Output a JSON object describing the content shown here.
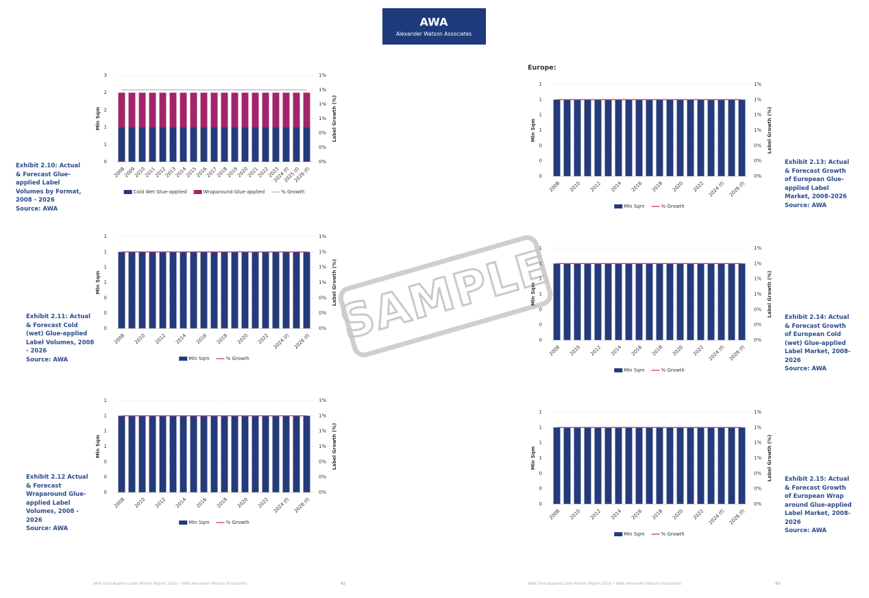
{
  "header": {
    "logo": "AWA",
    "subtitle": "Alexander Watson Associates"
  },
  "section": "Europe:",
  "watermark": "SAMPLE",
  "footer_left": {
    "text": "AWA Glue-Applied Label Market Report 2024 • AWA Alexander Watson Associates",
    "page": "42"
  },
  "footer_right": {
    "text": "AWA Glue-Applied Label Market Report 2024 • AWA Alexander Watson Associates",
    "page": "43"
  },
  "chart_data": [
    {
      "type": "bar",
      "stacked": true,
      "title": "Exhibit 2.10: Actual & Forecast Glue-applied Label Volumes by Format, 2008 - 2026",
      "source": "Source: AWA",
      "ylabel": "Mln Sqm",
      "y2label": "Label Growth (%)",
      "categories": [
        "2008",
        "2009",
        "2010",
        "2011",
        "2012",
        "2013",
        "2014",
        "2015",
        "2016",
        "2017",
        "2018",
        "2019",
        "2020",
        "2021",
        "2022",
        "2023",
        "2024 (f)",
        "2025 (f)",
        "2026 (f)"
      ],
      "series": [
        {
          "name": "Cold Wet Glue-applied",
          "color": "#253a7a",
          "values": [
            1.2,
            1.2,
            1.2,
            1.2,
            1.2,
            1.2,
            1.2,
            1.2,
            1.2,
            1.2,
            1.2,
            1.2,
            1.2,
            1.2,
            1.2,
            1.2,
            1.2,
            1.2,
            1.2
          ]
        },
        {
          "name": "Wraparound Glue-applied",
          "color": "#a3246a",
          "values": [
            1.2,
            1.2,
            1.2,
            1.2,
            1.2,
            1.2,
            1.2,
            1.2,
            1.2,
            1.2,
            1.2,
            1.2,
            1.2,
            1.2,
            1.2,
            1.2,
            1.2,
            1.2,
            1.2
          ]
        },
        {
          "name": "% Growth",
          "color": "#b5b5b5",
          "type": "line",
          "axis": "y2",
          "values": [
            1,
            1,
            1,
            1,
            1,
            1,
            1,
            1,
            1,
            1,
            1,
            1,
            1,
            1,
            1,
            1,
            1,
            1,
            1
          ]
        }
      ],
      "ylim": [
        0,
        3
      ],
      "yticks": [
        0,
        {
          "value": 0.6,
          "label": "1"
        },
        {
          "value": 1.2,
          "label": "1"
        },
        {
          "value": 1.8,
          "label": "2"
        },
        {
          "value": 2.4,
          "label": "2"
        },
        3
      ],
      "y2lim": [
        0,
        1.2
      ],
      "y2ticks": [
        {
          "value": 0,
          "label": "0%"
        },
        {
          "value": 0.2,
          "label": "0%"
        },
        {
          "value": 0.4,
          "label": "0%"
        },
        {
          "value": 0.6,
          "label": "1%"
        },
        {
          "value": 0.8,
          "label": "1%"
        },
        {
          "value": 1,
          "label": "1%"
        },
        {
          "value": 1.2,
          "label": "1%"
        }
      ],
      "grid": true
    },
    {
      "type": "bar",
      "title": "Exhibit 2.11: Actual & Forecast Cold (wet) Glue-applied Label Volumes, 2008 - 2026",
      "source": "Source: AWA",
      "ylabel": "Mln Sqm",
      "y2label": "Label Growth (%)",
      "categories": [
        "2008",
        null,
        "2010",
        null,
        "2012",
        null,
        "2014",
        null,
        "2016",
        null,
        "2018",
        null,
        "2020",
        null,
        "2022",
        null,
        "2024 (f)",
        null,
        "2026 (f)"
      ],
      "series": [
        {
          "name": "Mln Sqm",
          "color": "#253a7a",
          "values": [
            1,
            1,
            1,
            1,
            1,
            1,
            1,
            1,
            1,
            1,
            1,
            1,
            1,
            1,
            1,
            1,
            1,
            1,
            1
          ]
        },
        {
          "name": "% Growth",
          "color": "#c2387a",
          "type": "line",
          "axis": "y2",
          "values": [
            1,
            1,
            1,
            1,
            1,
            1,
            1,
            1,
            1,
            1,
            1,
            1,
            1,
            1,
            1,
            1,
            1,
            1,
            1
          ]
        }
      ],
      "ylim": [
        0,
        1.2
      ],
      "yticks": [
        0,
        {
          "value": 0.2,
          "label": "0"
        },
        {
          "value": 0.4,
          "label": "0"
        },
        {
          "value": 0.6,
          "label": "1"
        },
        {
          "value": 0.8,
          "label": "1"
        },
        1,
        {
          "value": 1.2,
          "label": "1"
        }
      ],
      "y2lim": [
        0,
        1.2
      ],
      "y2ticks": [
        {
          "value": 0,
          "label": "0%"
        },
        {
          "value": 0.2,
          "label": "0%"
        },
        {
          "value": 0.4,
          "label": "0%"
        },
        {
          "value": 0.6,
          "label": "1%"
        },
        {
          "value": 0.8,
          "label": "1%"
        },
        {
          "value": 1,
          "label": "1%"
        },
        {
          "value": 1.2,
          "label": "1%"
        }
      ],
      "grid": true
    },
    {
      "type": "bar",
      "title": "Exhibit 2.12 Actual & Forecast Wraparound Glue-applied Label Volumes, 2008 - 2026",
      "source": "Source: AWA",
      "ylabel": "Mln Sqm",
      "y2label": "Label Growth (%)",
      "categories": [
        "2008",
        null,
        "2010",
        null,
        "2012",
        null,
        "2014",
        null,
        "2016",
        null,
        "2018",
        null,
        "2020",
        null,
        "2022",
        null,
        "2024 (f)",
        null,
        "2026 (f)"
      ],
      "series": [
        {
          "name": "Mln Sqm",
          "color": "#253a7a",
          "values": [
            1,
            1,
            1,
            1,
            1,
            1,
            1,
            1,
            1,
            1,
            1,
            1,
            1,
            1,
            1,
            1,
            1,
            1,
            1
          ]
        },
        {
          "name": "% Growth",
          "color": "#c2387a",
          "type": "line",
          "axis": "y2",
          "values": [
            1,
            1,
            1,
            1,
            1,
            1,
            1,
            1,
            1,
            1,
            1,
            1,
            1,
            1,
            1,
            1,
            1,
            1,
            1
          ]
        }
      ],
      "ylim": [
        0,
        1.2
      ],
      "yticks": [
        0,
        {
          "value": 0.2,
          "label": "0"
        },
        {
          "value": 0.4,
          "label": "0"
        },
        {
          "value": 0.6,
          "label": "1"
        },
        {
          "value": 0.8,
          "label": "1"
        },
        1,
        {
          "value": 1.2,
          "label": "1"
        }
      ],
      "y2lim": [
        0,
        1.2
      ],
      "y2ticks": [
        {
          "value": 0,
          "label": "0%"
        },
        {
          "value": 0.2,
          "label": "0%"
        },
        {
          "value": 0.4,
          "label": "0%"
        },
        {
          "value": 0.6,
          "label": "1%"
        },
        {
          "value": 0.8,
          "label": "1%"
        },
        {
          "value": 1,
          "label": "1%"
        },
        {
          "value": 1.2,
          "label": "1%"
        }
      ],
      "grid": true
    },
    {
      "type": "bar",
      "title": "Exhibit 2.13: Actual & Forecast Growth of European Glue-applied Label Market, 2008-2026",
      "source": "Source: AWA",
      "ylabel": "Mln Sqm",
      "y2label": "Label Growth (%)",
      "categories": [
        "2008",
        null,
        "2010",
        null,
        "2012",
        null,
        "2014",
        null,
        "2016",
        null,
        "2018",
        null,
        "2020",
        null,
        "2022",
        null,
        "2024 (f)",
        null,
        "2026 (f)"
      ],
      "series": [
        {
          "name": "Mln Sqm",
          "color": "#253a7a",
          "values": [
            1,
            1,
            1,
            1,
            1,
            1,
            1,
            1,
            1,
            1,
            1,
            1,
            1,
            1,
            1,
            1,
            1,
            1,
            1
          ]
        },
        {
          "name": "% Growth",
          "color": "#c2387a",
          "type": "line",
          "axis": "y2",
          "values": [
            1,
            1,
            1,
            1,
            1,
            1,
            1,
            1,
            1,
            1,
            1,
            1,
            1,
            1,
            1,
            1,
            1,
            1,
            1
          ]
        }
      ],
      "ylim": [
        0,
        1.2
      ],
      "yticks": [
        0,
        {
          "value": 0.2,
          "label": "0"
        },
        {
          "value": 0.4,
          "label": "0"
        },
        {
          "value": 0.6,
          "label": "1"
        },
        {
          "value": 0.8,
          "label": "1"
        },
        1,
        {
          "value": 1.2,
          "label": "1"
        }
      ],
      "y2lim": [
        0,
        1.2
      ],
      "y2ticks": [
        {
          "value": 0,
          "label": "0%"
        },
        {
          "value": 0.2,
          "label": "0%"
        },
        {
          "value": 0.4,
          "label": "0%"
        },
        {
          "value": 0.6,
          "label": "1%"
        },
        {
          "value": 0.8,
          "label": "1%"
        },
        {
          "value": 1,
          "label": "1%"
        },
        {
          "value": 1.2,
          "label": "1%"
        }
      ],
      "grid": true
    },
    {
      "type": "bar",
      "title": "Exhibit 2.14: Actual & Forecast Growth of European Cold (wet) Glue-applied Label Market, 2008-2026",
      "source": "Source: AWA",
      "ylabel": "Mln Sqm",
      "y2label": "Label Growth (%)",
      "categories": [
        "2008",
        null,
        "2010",
        null,
        "2012",
        null,
        "2014",
        null,
        "2016",
        null,
        "2018",
        null,
        "2020",
        null,
        "2022",
        null,
        "2024 (f)",
        null,
        "2026 (f)"
      ],
      "series": [
        {
          "name": "Mln Sqm",
          "color": "#253a7a",
          "values": [
            1,
            1,
            1,
            1,
            1,
            1,
            1,
            1,
            1,
            1,
            1,
            1,
            1,
            1,
            1,
            1,
            1,
            1,
            1
          ]
        },
        {
          "name": "% Growth",
          "color": "#c2387a",
          "type": "line",
          "axis": "y2",
          "values": [
            1,
            1,
            1,
            1,
            1,
            1,
            1,
            1,
            1,
            1,
            1,
            1,
            1,
            1,
            1,
            1,
            1,
            1,
            1
          ]
        }
      ],
      "ylim": [
        0,
        1.2
      ],
      "yticks": [
        0,
        {
          "value": 0.2,
          "label": "0"
        },
        {
          "value": 0.4,
          "label": "0"
        },
        {
          "value": 0.6,
          "label": "1"
        },
        {
          "value": 0.8,
          "label": "1"
        },
        1,
        {
          "value": 1.2,
          "label": "1"
        }
      ],
      "y2lim": [
        0,
        1.2
      ],
      "y2ticks": [
        {
          "value": 0,
          "label": "0%"
        },
        {
          "value": 0.2,
          "label": "0%"
        },
        {
          "value": 0.4,
          "label": "0%"
        },
        {
          "value": 0.6,
          "label": "1%"
        },
        {
          "value": 0.8,
          "label": "1%"
        },
        {
          "value": 1,
          "label": "1%"
        },
        {
          "value": 1.2,
          "label": "1%"
        }
      ],
      "grid": true
    },
    {
      "type": "bar",
      "title": "Exhibit 2.15: Actual & Forecast Growth of European Wrap around Glue-applied Label Market, 2008-2026",
      "source": "Source: AWA",
      "ylabel": "Mln Sqm",
      "y2label": "Label Growth (%)",
      "categories": [
        "2008",
        null,
        "2010",
        null,
        "2012",
        null,
        "2014",
        null,
        "2016",
        null,
        "2018",
        null,
        "2020",
        null,
        "2022",
        null,
        "2024 (f)",
        null,
        "2026 (f)"
      ],
      "series": [
        {
          "name": "Mln Sqm",
          "color": "#253a7a",
          "values": [
            1,
            1,
            1,
            1,
            1,
            1,
            1,
            1,
            1,
            1,
            1,
            1,
            1,
            1,
            1,
            1,
            1,
            1,
            1
          ]
        },
        {
          "name": "% Growth",
          "color": "#c2387a",
          "type": "line",
          "axis": "y2",
          "values": [
            1,
            1,
            1,
            1,
            1,
            1,
            1,
            1,
            1,
            1,
            1,
            1,
            1,
            1,
            1,
            1,
            1,
            1,
            1
          ]
        }
      ],
      "ylim": [
        0,
        1.2
      ],
      "yticks": [
        0,
        {
          "value": 0.2,
          "label": "0"
        },
        {
          "value": 0.4,
          "label": "0"
        },
        {
          "value": 0.6,
          "label": "1"
        },
        {
          "value": 0.8,
          "label": "1"
        },
        1,
        {
          "value": 1.2,
          "label": "1"
        }
      ],
      "y2lim": [
        0,
        1.2
      ],
      "y2ticks": [
        {
          "value": 0,
          "label": "0%"
        },
        {
          "value": 0.2,
          "label": "0%"
        },
        {
          "value": 0.4,
          "label": "0%"
        },
        {
          "value": 0.6,
          "label": "1%"
        },
        {
          "value": 0.8,
          "label": "1%"
        },
        {
          "value": 1,
          "label": "1%"
        },
        {
          "value": 1.2,
          "label": "1%"
        }
      ],
      "grid": true
    }
  ]
}
